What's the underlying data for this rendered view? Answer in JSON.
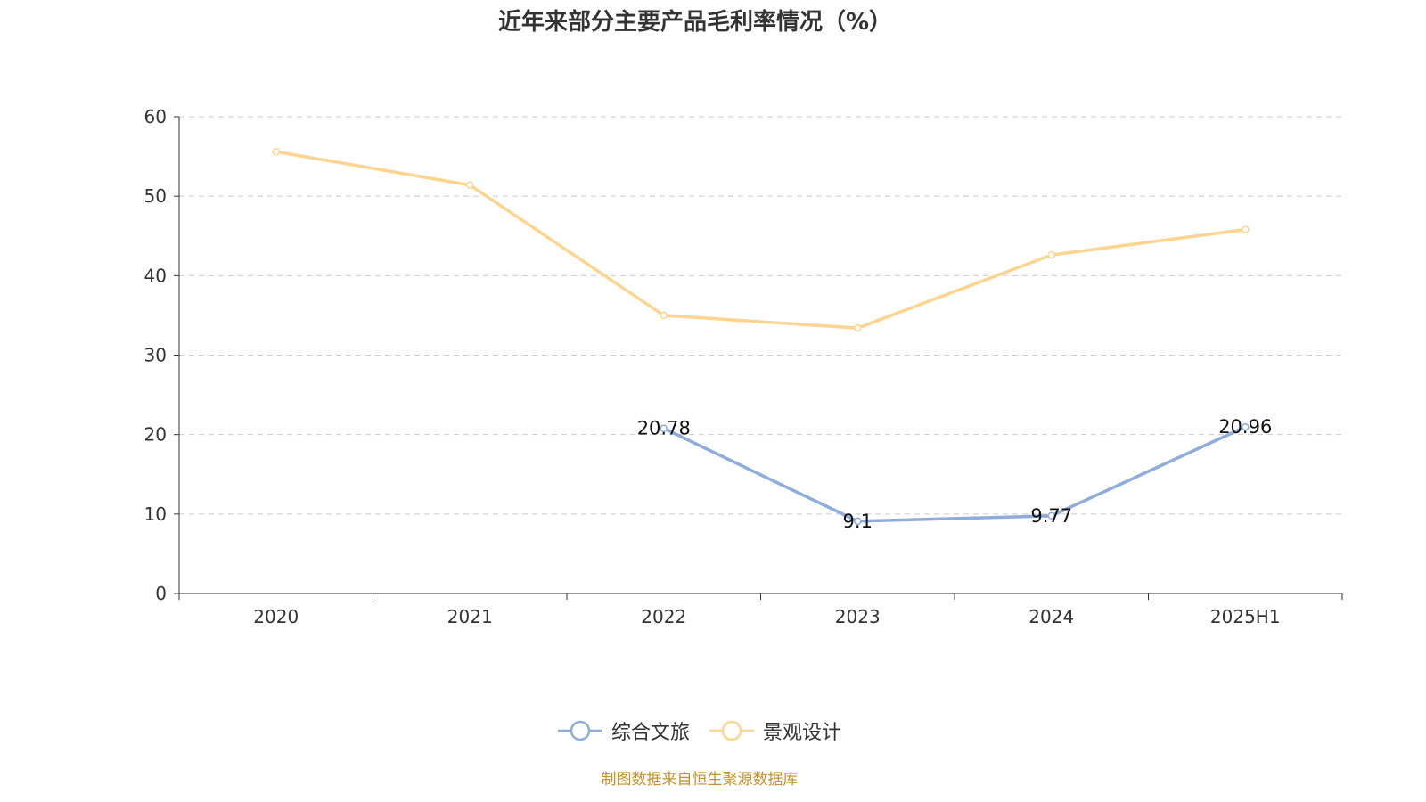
{
  "chart_data": {
    "type": "line",
    "title": "近年来部分主要产品毛利率情况（%）",
    "categories": [
      "2020",
      "2021",
      "2022",
      "2023",
      "2024",
      "2025H1"
    ],
    "ylim": [
      0,
      60
    ],
    "yticks": [
      "0",
      "10",
      "20",
      "30",
      "40",
      "50",
      "60"
    ],
    "grid": true,
    "legend_position": "bottom",
    "series": [
      {
        "name": "综合文旅",
        "color": "#8eacdc",
        "values": [
          null,
          null,
          20.78,
          9.1,
          9.77,
          20.96
        ],
        "labels": [
          null,
          null,
          "20.78",
          "9.1",
          "9.77",
          "20.96"
        ]
      },
      {
        "name": "景观设计",
        "color": "#fdd58f",
        "values": [
          55.6,
          51.4,
          35.0,
          33.4,
          42.6,
          45.8
        ],
        "labels": [
          null,
          null,
          null,
          null,
          null,
          null
        ]
      }
    ]
  },
  "source": "制图数据来自恒生聚源数据库"
}
